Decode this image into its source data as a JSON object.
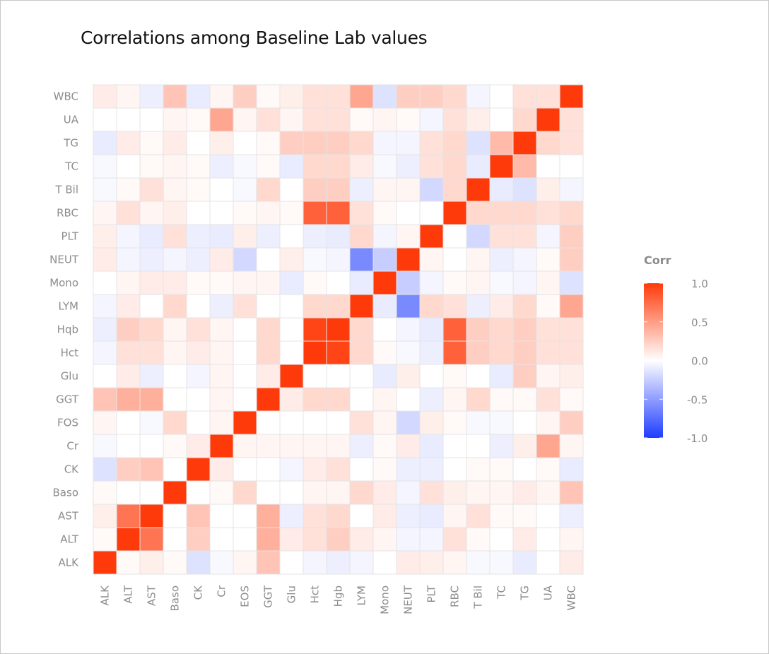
{
  "chart_data": {
    "type": "heatmap",
    "title": "Correlations among Baseline Lab values",
    "xlabel": "",
    "ylabel": "",
    "variables": [
      "ALK",
      "ALT",
      "AST",
      "Baso",
      "CK",
      "Cr",
      "EOS",
      "GGT",
      "Glu",
      "Hct",
      "Hqb",
      "LYM",
      "Mono",
      "NEUT",
      "PLT",
      "RBC",
      "T Bil",
      "TC",
      "TG",
      "UA",
      "WBC"
    ],
    "x_labels": [
      "ALK",
      "ALT",
      "AST",
      "Baso",
      "CK",
      "Cr",
      "EOS",
      "GGT",
      "Glu",
      "Hct",
      "Hgb",
      "LYM",
      "Mono",
      "NEUT",
      "PLT",
      "RBC",
      "T Bil",
      "TC",
      "TG",
      "UA",
      "WBC"
    ],
    "y_labels": [
      "ALK",
      "ALT",
      "AST",
      "Baso",
      "CK",
      "Cr",
      "FOS",
      "GGT",
      "Glu",
      "Hct",
      "Hqb",
      "LYM",
      "Mono",
      "NEUT",
      "PLT",
      "RBC",
      "T Bil",
      "TC",
      "TG",
      "UA",
      "WBC"
    ],
    "matrix": [
      [
        1.0,
        0.03,
        0.08,
        0.03,
        -0.15,
        -0.03,
        0.05,
        0.3,
        0.0,
        -0.05,
        -0.08,
        -0.05,
        0.0,
        0.1,
        0.08,
        0.05,
        -0.03,
        -0.03,
        -0.1,
        0.0,
        0.1
      ],
      [
        0.03,
        1.0,
        0.7,
        0.0,
        0.25,
        0.0,
        0.0,
        0.4,
        0.1,
        0.15,
        0.25,
        0.1,
        0.05,
        -0.05,
        -0.05,
        0.15,
        0.03,
        0.0,
        0.1,
        0.0,
        0.05
      ],
      [
        0.08,
        0.7,
        1.0,
        0.0,
        0.3,
        0.0,
        0.0,
        0.4,
        -0.08,
        0.15,
        0.2,
        0.0,
        0.1,
        -0.08,
        -0.1,
        0.05,
        0.15,
        0.03,
        0.03,
        0.0,
        -0.08
      ],
      [
        0.03,
        0.0,
        0.0,
        1.0,
        0.0,
        0.03,
        0.2,
        0.0,
        0.0,
        0.05,
        0.05,
        0.2,
        0.1,
        -0.05,
        0.15,
        0.08,
        0.05,
        0.05,
        0.1,
        0.05,
        0.3
      ],
      [
        -0.15,
        0.25,
        0.3,
        0.0,
        1.0,
        0.1,
        0.0,
        0.0,
        -0.05,
        0.1,
        0.15,
        0.0,
        0.03,
        -0.08,
        -0.08,
        0.0,
        0.03,
        0.03,
        0.0,
        0.03,
        -0.1
      ],
      [
        -0.03,
        0.0,
        0.0,
        0.03,
        0.1,
        1.0,
        0.05,
        0.05,
        0.05,
        0.05,
        0.05,
        -0.08,
        0.03,
        0.1,
        -0.1,
        0.0,
        0.0,
        -0.08,
        0.08,
        0.45,
        0.05
      ],
      [
        0.05,
        0.0,
        -0.03,
        0.2,
        0.0,
        0.05,
        1.0,
        0.0,
        0.0,
        0.0,
        0.0,
        0.15,
        0.05,
        -0.2,
        0.08,
        0.03,
        -0.03,
        -0.03,
        0.0,
        0.05,
        0.25
      ],
      [
        0.3,
        0.4,
        0.4,
        0.0,
        0.0,
        0.05,
        0.0,
        1.0,
        0.1,
        0.2,
        0.2,
        0.0,
        0.05,
        0.0,
        -0.08,
        0.05,
        0.2,
        0.03,
        0.03,
        0.15,
        0.03
      ],
      [
        0.0,
        0.1,
        -0.08,
        0.0,
        -0.05,
        0.05,
        0.0,
        0.1,
        1.0,
        0.0,
        0.0,
        0.0,
        -0.1,
        0.08,
        0.0,
        0.03,
        0.0,
        -0.1,
        0.25,
        0.05,
        0.08
      ],
      [
        -0.05,
        0.15,
        0.15,
        0.05,
        0.1,
        0.05,
        0.0,
        0.2,
        0.0,
        1.0,
        0.95,
        0.2,
        0.03,
        -0.03,
        -0.08,
        0.8,
        0.25,
        0.2,
        0.25,
        0.15,
        0.15
      ],
      [
        -0.08,
        0.25,
        0.2,
        0.05,
        0.15,
        0.05,
        0.0,
        0.2,
        0.0,
        0.95,
        1.0,
        0.2,
        0.0,
        -0.05,
        -0.1,
        0.8,
        0.25,
        0.2,
        0.25,
        0.15,
        0.15
      ],
      [
        -0.05,
        0.1,
        0.0,
        0.2,
        0.0,
        -0.08,
        0.15,
        0.0,
        0.0,
        0.2,
        0.2,
        1.0,
        -0.1,
        -0.6,
        0.2,
        0.15,
        -0.08,
        0.1,
        0.2,
        0.03,
        0.45
      ],
      [
        0.0,
        0.05,
        0.1,
        0.1,
        0.03,
        0.03,
        0.05,
        0.05,
        -0.1,
        0.03,
        0.0,
        -0.1,
        1.0,
        -0.25,
        -0.05,
        0.03,
        0.05,
        -0.03,
        -0.05,
        0.05,
        -0.15
      ],
      [
        0.1,
        -0.05,
        -0.08,
        -0.05,
        -0.08,
        0.1,
        -0.2,
        0.0,
        0.08,
        -0.03,
        -0.05,
        -0.6,
        -0.25,
        1.0,
        0.05,
        0.0,
        0.05,
        -0.08,
        -0.05,
        0.03,
        0.25
      ],
      [
        0.08,
        -0.05,
        -0.1,
        0.15,
        -0.08,
        -0.1,
        0.08,
        -0.08,
        0.0,
        -0.08,
        -0.1,
        0.2,
        -0.05,
        0.05,
        1.0,
        0.0,
        -0.2,
        0.15,
        0.15,
        -0.05,
        0.25
      ],
      [
        0.05,
        0.15,
        0.05,
        0.08,
        0.0,
        0.0,
        0.03,
        0.05,
        0.03,
        0.8,
        0.8,
        0.15,
        0.03,
        0.0,
        0.0,
        1.0,
        0.2,
        0.2,
        0.2,
        0.15,
        0.2
      ],
      [
        -0.03,
        0.03,
        0.15,
        0.05,
        0.03,
        0.0,
        -0.03,
        0.2,
        0.0,
        0.25,
        0.25,
        -0.08,
        0.05,
        0.05,
        -0.2,
        0.2,
        1.0,
        -0.1,
        -0.15,
        0.08,
        -0.05
      ],
      [
        -0.03,
        0.0,
        0.03,
        0.05,
        0.03,
        -0.08,
        -0.03,
        0.03,
        -0.1,
        0.2,
        0.2,
        0.1,
        -0.03,
        -0.08,
        0.15,
        0.2,
        -0.1,
        1.0,
        0.35,
        0.0,
        0.0
      ],
      [
        -0.1,
        0.1,
        0.03,
        0.1,
        0.0,
        0.08,
        0.0,
        0.03,
        0.25,
        0.25,
        0.25,
        0.2,
        -0.05,
        -0.05,
        0.15,
        0.2,
        -0.15,
        0.35,
        1.0,
        0.2,
        0.15
      ],
      [
        0.0,
        0.0,
        0.0,
        0.05,
        0.03,
        0.45,
        0.05,
        0.15,
        0.05,
        0.15,
        0.15,
        0.03,
        0.05,
        0.03,
        -0.05,
        0.15,
        0.08,
        0.0,
        0.2,
        1.0,
        0.15
      ],
      [
        0.1,
        0.05,
        -0.08,
        0.3,
        -0.1,
        0.05,
        0.25,
        0.03,
        0.08,
        0.15,
        0.15,
        0.45,
        -0.15,
        0.25,
        0.25,
        0.2,
        -0.05,
        0.0,
        0.15,
        0.15,
        1.0
      ]
    ],
    "legend": {
      "title": "Corr",
      "ticks": [
        "1.0",
        "0.5",
        "0.0",
        "-0.5",
        "-1.0"
      ],
      "tick_values": [
        1.0,
        0.5,
        0.0,
        -0.5,
        -1.0
      ],
      "position": "right"
    },
    "colors": {
      "high": "#ff3a0a",
      "mid": "#ffffff",
      "low": "#1f3cff"
    },
    "zlim": [
      -1,
      1
    ],
    "grid": false
  }
}
